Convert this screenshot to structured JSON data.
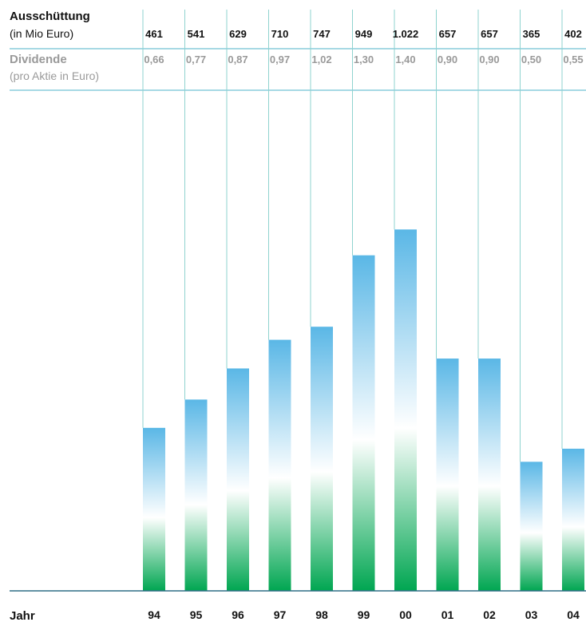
{
  "header": {
    "payout_label": "Ausschüttung",
    "payout_unit": "(in Mio Euro)",
    "dividend_label": "Dividende",
    "dividend_unit": "(pro Aktie in Euro)"
  },
  "footer": {
    "year_label": "Jahr"
  },
  "chart_data": {
    "type": "bar",
    "categories": [
      "94",
      "95",
      "96",
      "97",
      "98",
      "99",
      "00",
      "01",
      "02",
      "03",
      "04"
    ],
    "values": [
      461,
      541,
      629,
      710,
      747,
      949,
      1022,
      657,
      657,
      365,
      402
    ],
    "value_labels": [
      "461",
      "541",
      "629",
      "710",
      "747",
      "949",
      "1.022",
      "657",
      "657",
      "365",
      "402"
    ],
    "dividend_labels": [
      "0,66",
      "0,77",
      "0,87",
      "0,97",
      "1,02",
      "1,30",
      "1,40",
      "0,90",
      "0,90",
      "0,50",
      "0,55"
    ],
    "xlabel": "Jahr",
    "ylabel": "",
    "ylim": [
      0,
      1400
    ],
    "grid": false,
    "colors": {
      "bar_top": "#5ab7e6",
      "bar_mid": "#ffffff",
      "bar_bottom": "#00a651",
      "row_rule": "#4db3ca",
      "column_line": "#8fd3cf",
      "baseline": "#2f6f86",
      "header_text": "#111111",
      "dividend_text": "#9a9a9a"
    }
  }
}
